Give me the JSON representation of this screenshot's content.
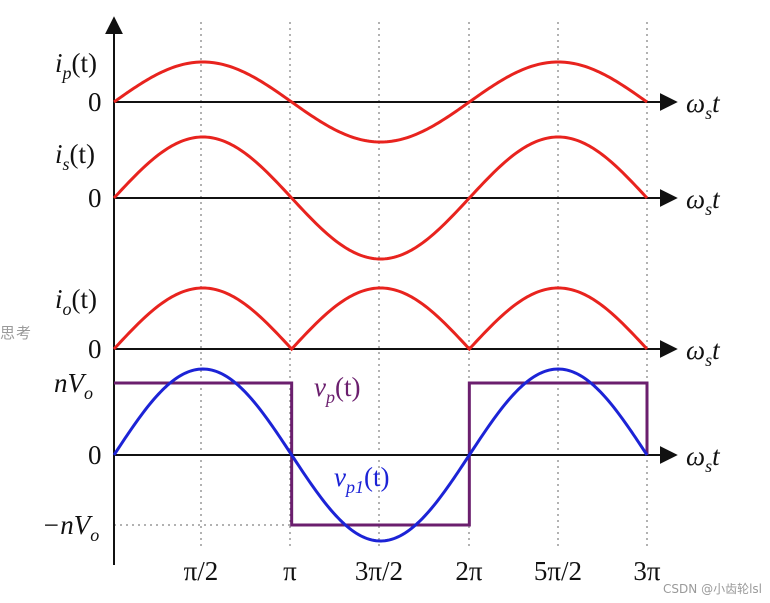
{
  "labels": {
    "ip_i": "i",
    "ip_sub": "p",
    "ip_t": "(t)",
    "is_i": "i",
    "is_sub": "s",
    "is_t": "(t)",
    "io_i": "i",
    "io_sub": "o",
    "io_t": "(t)",
    "vp_v": "v",
    "vp_sub": "p",
    "vp_t": "(t)",
    "vp1_v": "v",
    "vp1_sub": "p1",
    "vp1_t": "(t)",
    "nvo_pos": "nV",
    "nvo_pos_sub": "o",
    "nvo_neg": "−nV",
    "nvo_neg_sub": "o",
    "zero": "0",
    "omega": "ω",
    "omega_sub": "s",
    "omega_t": "t"
  },
  "x_ticks": [
    "π/2",
    "π",
    "3π/2",
    "2π",
    "5π/2",
    "3π"
  ],
  "colors": {
    "current": "#e8231e",
    "square": "#6b1f6e",
    "fundamental": "#1c23d6",
    "axis": "#111111"
  },
  "watermark": {
    "left": "思考",
    "right": "CSDN @小齿轮lsl"
  },
  "chart_data": {
    "type": "line",
    "x_range": [
      "0",
      "3π"
    ],
    "panels": [
      {
        "series": [
          {
            "name": "i_p(t)",
            "shape": "sine, phase 0, amplitude 1"
          }
        ]
      },
      {
        "series": [
          {
            "name": "i_s(t)",
            "shape": "sine, phase 0, amplitude 1.5"
          }
        ]
      },
      {
        "series": [
          {
            "name": "i_o(t)",
            "shape": "rectified |sine|"
          }
        ]
      },
      {
        "series": [
          {
            "name": "v_p(t)",
            "shape": "square wave ±nV_o, sign changes at π, 2π"
          },
          {
            "name": "v_p1(t)",
            "shape": "fundamental sine, amplitude 4/π·nV_o"
          }
        ]
      }
    ]
  }
}
